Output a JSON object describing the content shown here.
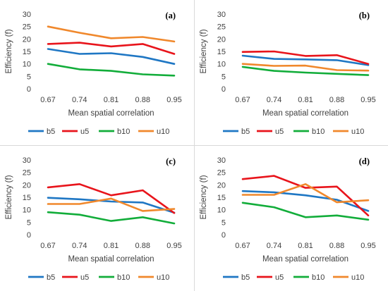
{
  "colors": {
    "b5": "#1f77c4",
    "u5": "#e8141b",
    "b10": "#12ad3a",
    "u10": "#f0882c"
  },
  "chart_data": [
    {
      "type": "line",
      "panel_label": "(a)",
      "categories": [
        "0.67",
        "0.74",
        "0.81",
        "0.88",
        "0.95"
      ],
      "xlabel": "Mean spatial correlation",
      "ylabel": "Efficiency (f)",
      "ylim": [
        0,
        30
      ],
      "yticks": [
        "0",
        "5",
        "10",
        "15",
        "20",
        "25",
        "30"
      ],
      "grid": false,
      "legend_position": "bottom",
      "series": [
        {
          "name": "b5",
          "values": [
            16.0,
            14.0,
            14.3,
            12.8,
            10.0
          ]
        },
        {
          "name": "u5",
          "values": [
            18.0,
            18.5,
            17.0,
            18.0,
            14.0
          ]
        },
        {
          "name": "b10",
          "values": [
            10.0,
            7.8,
            7.2,
            5.8,
            5.3
          ]
        },
        {
          "name": "u10",
          "values": [
            25.0,
            22.5,
            20.3,
            20.8,
            19.0
          ]
        }
      ]
    },
    {
      "type": "line",
      "panel_label": "(b)",
      "categories": [
        "0.67",
        "0.74",
        "0.81",
        "0.88",
        "0.95"
      ],
      "xlabel": "Mean spatial correlation",
      "ylabel": "Efficiency (f)",
      "ylim": [
        0,
        30
      ],
      "yticks": [
        "0",
        "5",
        "10",
        "15",
        "20",
        "25",
        "30"
      ],
      "grid": false,
      "legend_position": "bottom",
      "series": [
        {
          "name": "b5",
          "values": [
            13.3,
            12.0,
            11.8,
            11.5,
            9.5
          ]
        },
        {
          "name": "u5",
          "values": [
            14.8,
            15.0,
            13.2,
            13.5,
            10.0
          ]
        },
        {
          "name": "b10",
          "values": [
            8.8,
            7.2,
            6.5,
            6.0,
            5.5
          ]
        },
        {
          "name": "u10",
          "values": [
            10.0,
            9.2,
            9.3,
            7.5,
            7.3
          ]
        }
      ]
    },
    {
      "type": "line",
      "panel_label": "(c)",
      "categories": [
        "0.67",
        "0.74",
        "0.81",
        "0.88",
        "0.95"
      ],
      "xlabel": "Mean spatial correlation",
      "ylabel": "Efficiency (f)",
      "ylim": [
        0,
        30
      ],
      "yticks": [
        "0",
        "5",
        "10",
        "15",
        "20",
        "25",
        "30"
      ],
      "grid": false,
      "legend_position": "bottom",
      "series": [
        {
          "name": "b5",
          "values": [
            14.8,
            14.2,
            13.3,
            12.9,
            8.8
          ]
        },
        {
          "name": "u5",
          "values": [
            19.0,
            20.3,
            15.8,
            17.8,
            8.7
          ]
        },
        {
          "name": "b10",
          "values": [
            9.0,
            8.0,
            5.5,
            7.0,
            4.5
          ]
        },
        {
          "name": "u10",
          "values": [
            12.3,
            12.3,
            14.5,
            9.5,
            10.3
          ]
        }
      ]
    },
    {
      "type": "line",
      "panel_label": "(d)",
      "categories": [
        "0.67",
        "0.74",
        "0.81",
        "0.88",
        "0.95"
      ],
      "xlabel": "Mean spatial correlation",
      "ylabel": "Efficiency (f)",
      "ylim": [
        0,
        30
      ],
      "yticks": [
        "0",
        "5",
        "10",
        "15",
        "20",
        "25",
        "30"
      ],
      "grid": false,
      "legend_position": "bottom",
      "series": [
        {
          "name": "b5",
          "values": [
            17.5,
            17.0,
            15.8,
            14.0,
            9.5
          ]
        },
        {
          "name": "u5",
          "values": [
            22.3,
            23.6,
            18.8,
            19.3,
            7.7
          ]
        },
        {
          "name": "b10",
          "values": [
            12.8,
            11.0,
            7.0,
            7.7,
            6.0
          ]
        },
        {
          "name": "u10",
          "values": [
            16.0,
            16.0,
            20.3,
            13.0,
            13.8
          ]
        }
      ]
    }
  ]
}
